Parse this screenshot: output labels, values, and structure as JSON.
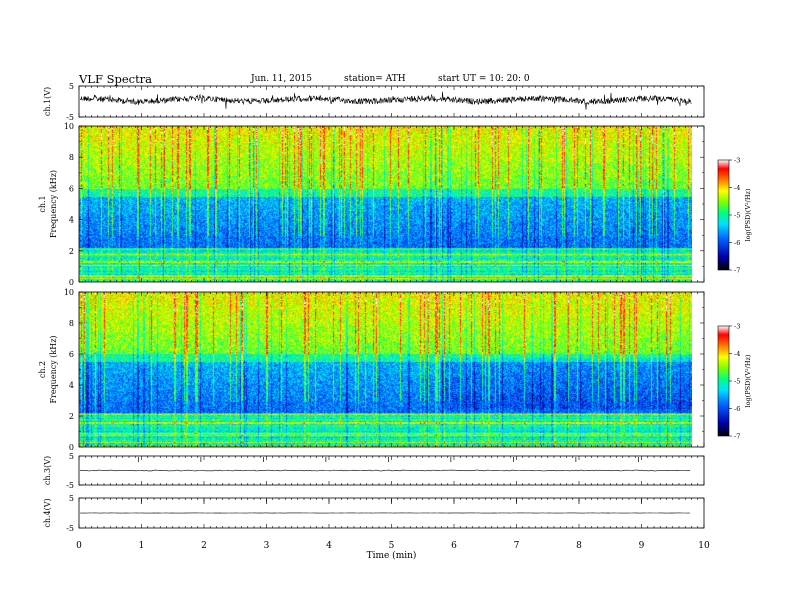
{
  "header": {
    "title": "VLF  Spectra",
    "date": "Jun. 11, 2015",
    "station": "station= ATH",
    "start": "start  UT  =    10: 20: 0"
  },
  "colorbar": {
    "label": "log(PSD)(V²/Hz)",
    "ticks": [
      "-3",
      "-4",
      "-5",
      "-6",
      "-7"
    ]
  },
  "chart_data": [
    {
      "type": "line",
      "panel": "ch.1 waveform",
      "ylabel": "ch.1(V)",
      "ylim": [
        -5,
        5
      ],
      "yticks": [
        "5",
        "-5"
      ],
      "series": [
        {
          "x": [
            0,
            9.8
          ],
          "y": [
            0.5,
            0.5
          ]
        }
      ]
    },
    {
      "type": "heatmap",
      "panel": "ch.1 spectrogram",
      "ylabel_top": "ch.1",
      "ylabel": "Frequency  (kHz)",
      "xlim": [
        0,
        10
      ],
      "ylim": [
        0,
        10
      ],
      "yticks": [
        "0",
        "2",
        "4",
        "6",
        "8",
        "10"
      ],
      "value_range": [
        -7,
        -3
      ],
      "data_extent_min": [
        0,
        9.8
      ]
    },
    {
      "type": "heatmap",
      "panel": "ch.2 spectrogram",
      "ylabel_top": "ch.2",
      "ylabel": "Frequency  (kHz)",
      "xlim": [
        0,
        10
      ],
      "ylim": [
        0,
        10
      ],
      "yticks": [
        "0",
        "2",
        "4",
        "6",
        "8",
        "10"
      ],
      "value_range": [
        -7,
        -3
      ],
      "data_extent_min": [
        0,
        9.8
      ]
    },
    {
      "type": "line",
      "panel": "ch.3 waveform",
      "ylabel": "ch.3(V)",
      "ylim": [
        -5,
        5
      ],
      "yticks": [
        "5",
        "-5"
      ],
      "series": [
        {
          "x": [
            0,
            9.8
          ],
          "y": [
            0,
            0
          ]
        }
      ]
    },
    {
      "type": "line",
      "panel": "ch.4 waveform",
      "ylabel": "ch.4(V)",
      "ylim": [
        -5,
        5
      ],
      "yticks": [
        "5",
        "-5"
      ],
      "series": [
        {
          "x": [
            0,
            9.8
          ],
          "y": [
            0,
            0
          ]
        }
      ]
    },
    {
      "type": "axis",
      "xlabel": "Time  (min)",
      "xlim": [
        0,
        10
      ],
      "xticks": [
        "0",
        "1",
        "2",
        "3",
        "4",
        "5",
        "6",
        "7",
        "8",
        "9",
        "10"
      ]
    }
  ]
}
